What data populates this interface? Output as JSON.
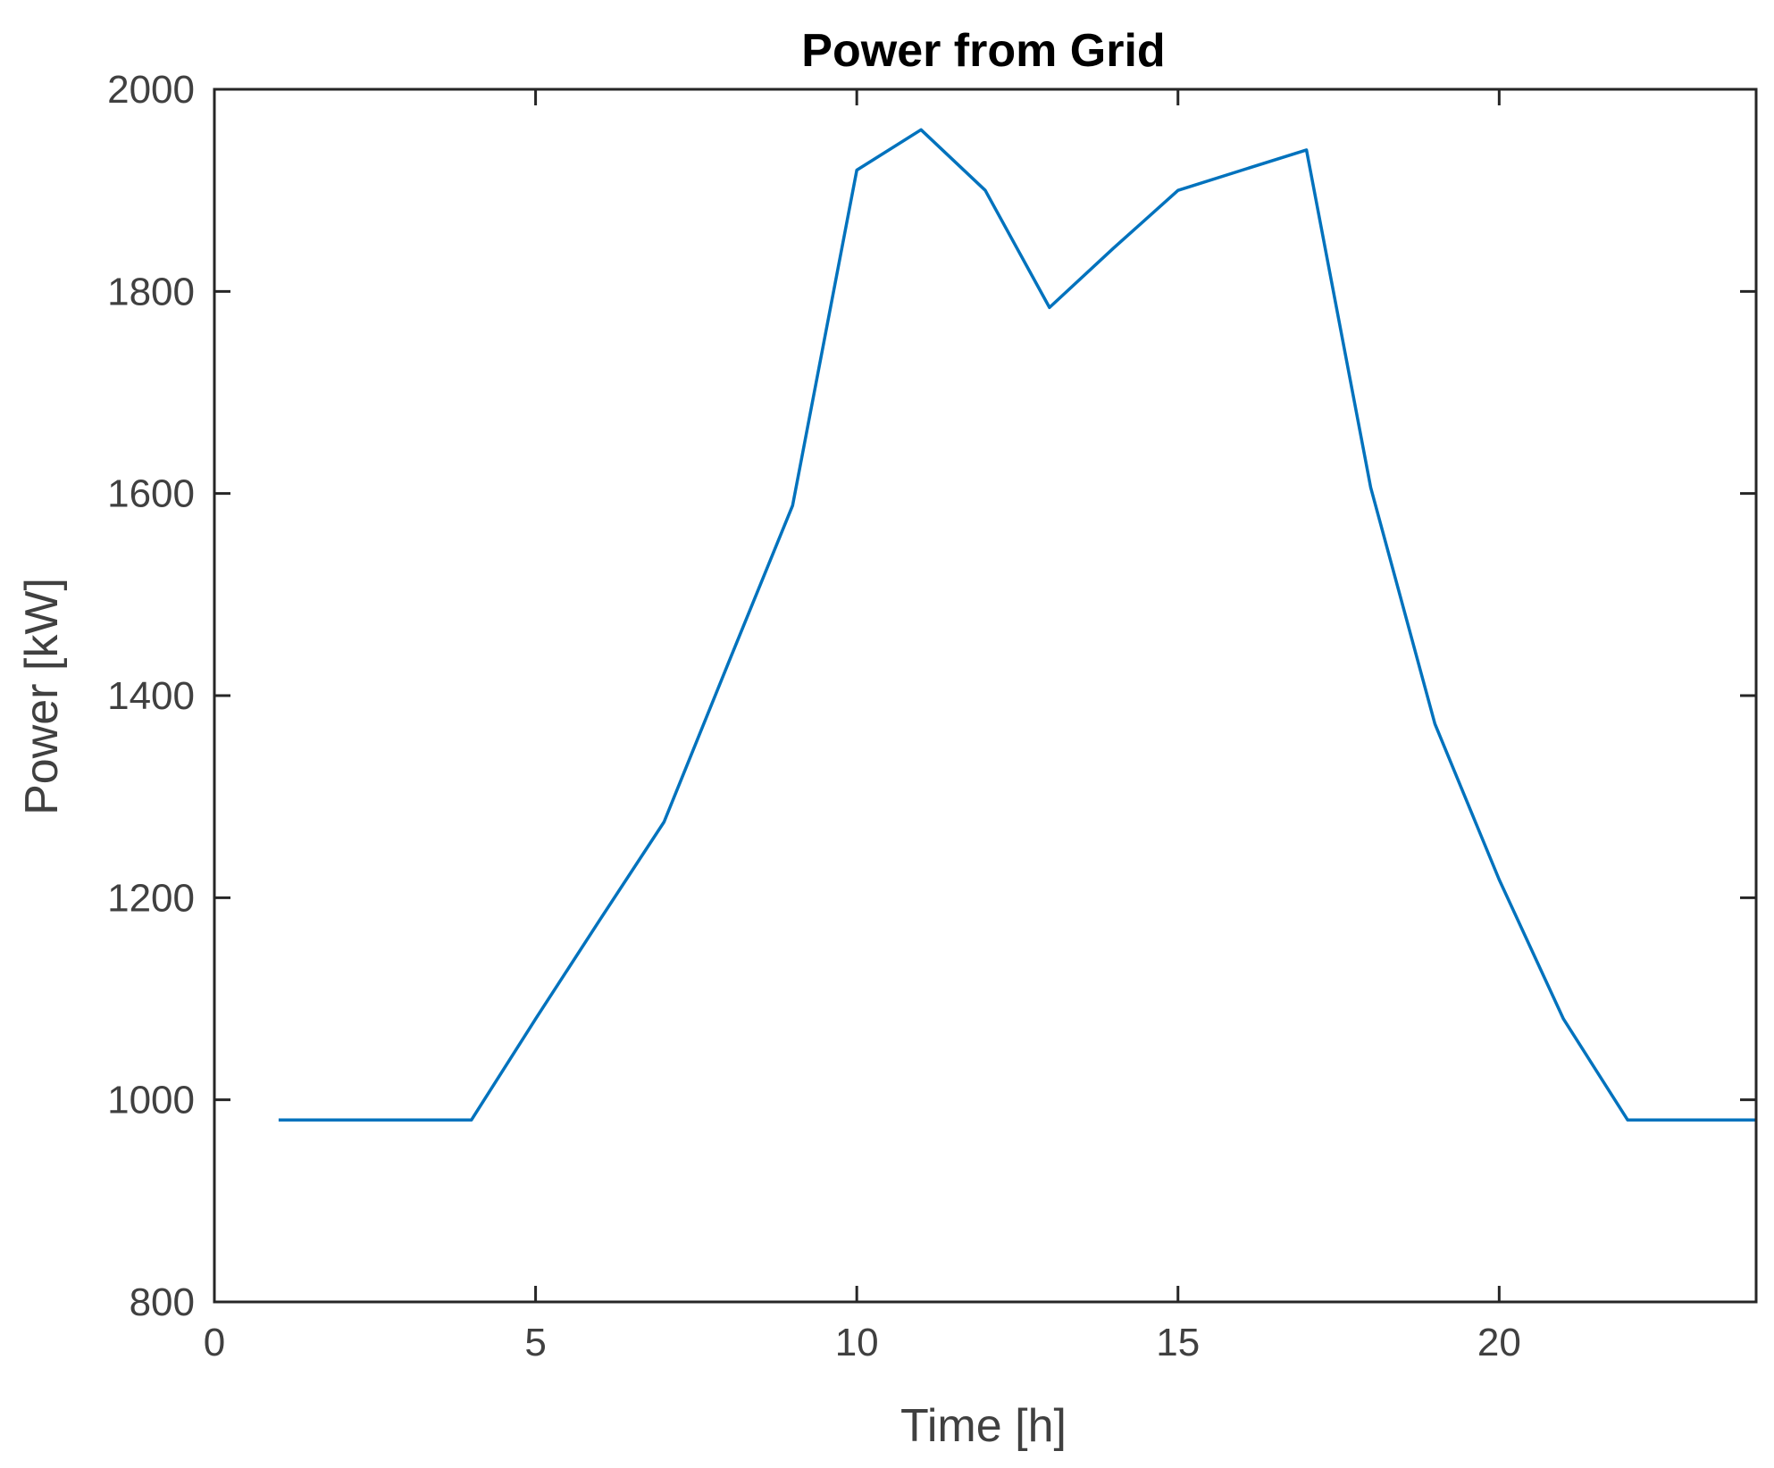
{
  "chart_data": {
    "type": "line",
    "title": "Power from Grid",
    "xlabel": "Time [h]",
    "ylabel": "Power [kW]",
    "xlim": [
      0,
      24
    ],
    "ylim": [
      800,
      2000
    ],
    "xticks": [
      0,
      5,
      10,
      15,
      20
    ],
    "yticks": [
      800,
      1000,
      1200,
      1400,
      1600,
      1800,
      2000
    ],
    "grid": false,
    "colors": {
      "line": "#0072BD",
      "axes": "#262626"
    },
    "series": [
      {
        "x": [
          1,
          2,
          3,
          4,
          5,
          6,
          7,
          8,
          9,
          10,
          11,
          12,
          13,
          14,
          15,
          16,
          17,
          18,
          19,
          20,
          21,
          22,
          23,
          24
        ],
        "values": [
          980,
          980,
          980,
          980,
          1080,
          1178,
          1275,
          1432,
          1588,
          1920,
          1960,
          1900,
          1784,
          1843,
          1900,
          1920,
          1940,
          1606,
          1372,
          1218,
          1080,
          980,
          980,
          980
        ]
      }
    ]
  }
}
